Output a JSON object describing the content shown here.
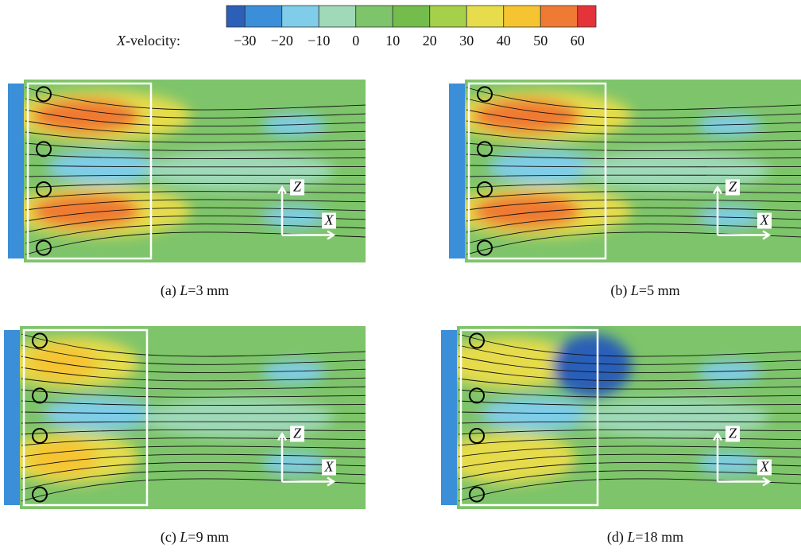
{
  "colorbar": {
    "label_var": "X",
    "label_rest": "-velocity:",
    "colors": [
      "#2b5fb8",
      "#3a8fd8",
      "#7fcde8",
      "#9fd9b8",
      "#7ec46a",
      "#74bd4c",
      "#a6cf4a",
      "#e6dc4c",
      "#f6c431",
      "#ef7a33",
      "#e5333a"
    ],
    "ticks": [
      {
        "value": -30,
        "label": "−30"
      },
      {
        "value": -20,
        "label": "−20"
      },
      {
        "value": -10,
        "label": "−10"
      },
      0,
      10,
      20,
      30,
      40,
      50,
      60
    ]
  },
  "axis_labels": {
    "z": "Z",
    "x": "X"
  },
  "panels": [
    {
      "tag": "(a) ",
      "var": "L",
      "rest": "=3 mm"
    },
    {
      "tag": "(b) ",
      "var": "L",
      "rest": "=5 mm"
    },
    {
      "tag": "(c) ",
      "var": "L",
      "rest": "=9 mm"
    },
    {
      "tag": "(d) ",
      "var": "L",
      "rest": "=18 mm"
    }
  ]
}
